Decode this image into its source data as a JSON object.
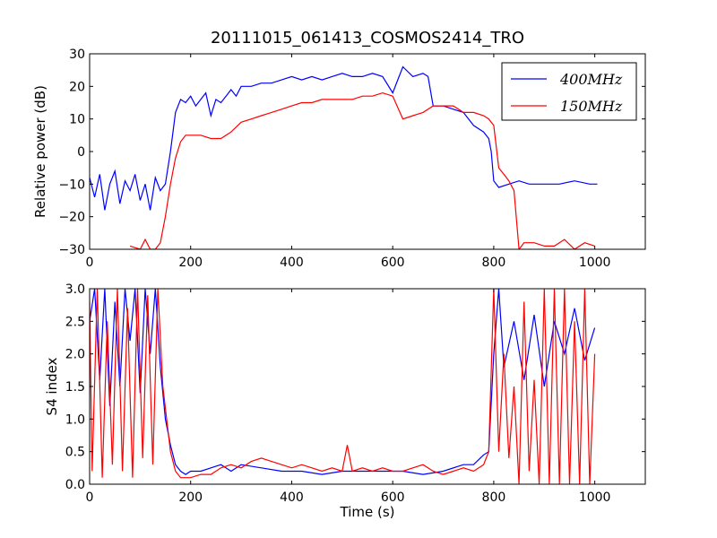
{
  "title": "20111015_061413_COSMOS2414_TRO",
  "colors": {
    "series_400": "#0000ff",
    "series_150": "#ff0000",
    "axes": "#000000",
    "background": "#ffffff"
  },
  "chart_data": [
    {
      "type": "line",
      "ylabel": "Relative power (dB)",
      "xlabel": "",
      "xlim": [
        0,
        1100
      ],
      "ylim": [
        -30,
        30
      ],
      "xticks": [
        0,
        200,
        400,
        600,
        800,
        1000
      ],
      "yticks": [
        -30,
        -20,
        -10,
        0,
        10,
        20,
        30
      ],
      "xtick_labels": [
        "0",
        "200",
        "400",
        "600",
        "800",
        "1000"
      ],
      "ytick_labels": [
        "−30",
        "−20",
        "−10",
        "0",
        "10",
        "20",
        "30"
      ],
      "legend_placement": "top-right",
      "grid": false,
      "series": [
        {
          "name": "400MHz",
          "color": "#0000ff",
          "x": [
            0,
            10,
            20,
            30,
            40,
            50,
            60,
            70,
            80,
            90,
            100,
            110,
            120,
            130,
            140,
            150,
            160,
            170,
            180,
            190,
            200,
            210,
            220,
            230,
            240,
            250,
            260,
            270,
            280,
            290,
            300,
            320,
            340,
            360,
            380,
            400,
            420,
            440,
            460,
            480,
            500,
            520,
            540,
            560,
            580,
            600,
            610,
            620,
            640,
            660,
            670,
            680,
            700,
            720,
            740,
            760,
            780,
            790,
            795,
            800,
            810,
            830,
            850,
            870,
            900,
            930,
            960,
            990,
            1005
          ],
          "y": [
            -8,
            -14,
            -7,
            -18,
            -10,
            -6,
            -16,
            -9,
            -12,
            -7,
            -15,
            -10,
            -18,
            -8,
            -12,
            -10,
            0,
            12,
            16,
            15,
            17,
            14,
            16,
            18,
            11,
            16,
            15,
            17,
            19,
            17,
            20,
            20,
            21,
            21,
            22,
            23,
            22,
            23,
            22,
            23,
            24,
            23,
            23,
            24,
            23,
            18,
            22,
            26,
            23,
            24,
            23,
            14,
            14,
            13,
            12,
            8,
            6,
            4,
            0,
            -9,
            -11,
            -10,
            -9,
            -10,
            -10,
            -10,
            -9,
            -10,
            -10
          ]
        },
        {
          "name": "150MHz",
          "color": "#ff0000",
          "x": [
            80,
            100,
            110,
            120,
            130,
            140,
            150,
            160,
            170,
            180,
            190,
            200,
            220,
            240,
            260,
            280,
            300,
            320,
            340,
            360,
            380,
            400,
            420,
            440,
            460,
            480,
            500,
            520,
            540,
            560,
            580,
            600,
            620,
            640,
            660,
            680,
            700,
            720,
            740,
            760,
            780,
            790,
            800,
            810,
            820,
            830,
            840,
            850,
            860,
            880,
            900,
            920,
            940,
            960,
            980,
            1000
          ],
          "y": [
            -29,
            -30,
            -27,
            -30,
            -30,
            -28,
            -20,
            -10,
            -2,
            3,
            5,
            5,
            5,
            4,
            4,
            6,
            9,
            10,
            11,
            12,
            13,
            14,
            15,
            15,
            16,
            16,
            16,
            16,
            17,
            17,
            18,
            17,
            10,
            11,
            12,
            14,
            14,
            14,
            12,
            12,
            11,
            10,
            8,
            -5,
            -7,
            -9,
            -12,
            -30,
            -28,
            -28,
            -29,
            -29,
            -27,
            -30,
            -28,
            -29
          ]
        }
      ]
    },
    {
      "type": "line",
      "ylabel": "S4 index",
      "xlabel": "Time (s)",
      "xlim": [
        0,
        1100
      ],
      "ylim": [
        0,
        3
      ],
      "xticks": [
        0,
        200,
        400,
        600,
        800,
        1000
      ],
      "yticks": [
        0,
        0.5,
        1,
        1.5,
        2,
        2.5,
        3
      ],
      "xtick_labels": [
        "0",
        "200",
        "400",
        "600",
        "800",
        "1000"
      ],
      "ytick_labels": [
        "0.0",
        "0.5",
        "1.0",
        "1.5",
        "2.0",
        "2.5",
        "3.0"
      ],
      "grid": false,
      "series": [
        {
          "name": "400MHz",
          "color": "#0000ff",
          "x": [
            0,
            10,
            20,
            30,
            40,
            50,
            60,
            70,
            80,
            90,
            100,
            110,
            120,
            130,
            140,
            150,
            160,
            170,
            180,
            190,
            200,
            220,
            240,
            260,
            280,
            300,
            340,
            380,
            420,
            460,
            500,
            540,
            580,
            620,
            660,
            700,
            740,
            760,
            780,
            790,
            800,
            810,
            820,
            840,
            860,
            880,
            900,
            920,
            940,
            960,
            980,
            1000
          ],
          "y": [
            2.5,
            3.0,
            1.6,
            3.0,
            1.2,
            2.8,
            1.5,
            3.0,
            2.2,
            3.0,
            1.4,
            3.0,
            2.0,
            3.0,
            1.8,
            1.0,
            0.6,
            0.3,
            0.2,
            0.15,
            0.2,
            0.2,
            0.25,
            0.3,
            0.2,
            0.3,
            0.25,
            0.2,
            0.2,
            0.15,
            0.2,
            0.2,
            0.2,
            0.2,
            0.15,
            0.2,
            0.3,
            0.3,
            0.45,
            0.5,
            2.0,
            3.0,
            1.8,
            2.5,
            1.6,
            2.6,
            1.5,
            2.5,
            2.0,
            2.7,
            1.9,
            2.4
          ]
        },
        {
          "name": "150MHz",
          "color": "#ff0000",
          "x": [
            0,
            5,
            15,
            25,
            35,
            45,
            55,
            65,
            75,
            85,
            95,
            105,
            115,
            125,
            135,
            145,
            160,
            170,
            180,
            190,
            200,
            220,
            240,
            260,
            280,
            300,
            320,
            340,
            360,
            380,
            400,
            420,
            440,
            460,
            480,
            500,
            510,
            520,
            540,
            560,
            580,
            600,
            620,
            640,
            660,
            680,
            700,
            720,
            740,
            760,
            780,
            790,
            800,
            810,
            820,
            830,
            840,
            850,
            860,
            870,
            880,
            890,
            900,
            910,
            920,
            930,
            940,
            950,
            960,
            970,
            980,
            990,
            1000
          ],
          "y": [
            2.8,
            0.2,
            3.0,
            0.1,
            2.5,
            0.3,
            3.0,
            0.2,
            2.7,
            0.1,
            3.0,
            0.4,
            2.9,
            0.3,
            3.0,
            1.5,
            0.5,
            0.2,
            0.1,
            0.1,
            0.1,
            0.15,
            0.15,
            0.25,
            0.3,
            0.25,
            0.35,
            0.4,
            0.35,
            0.3,
            0.25,
            0.3,
            0.25,
            0.2,
            0.25,
            0.2,
            0.6,
            0.2,
            0.25,
            0.2,
            0.25,
            0.2,
            0.2,
            0.25,
            0.3,
            0.2,
            0.15,
            0.2,
            0.25,
            0.2,
            0.3,
            0.5,
            3.0,
            0.5,
            2.0,
            0.4,
            1.5,
            0.0,
            2.8,
            0.2,
            1.6,
            0.0,
            3.0,
            0.0,
            3.0,
            0.0,
            3.0,
            0.0,
            2.5,
            0.0,
            3.0,
            0.0,
            2.0
          ]
        }
      ]
    }
  ]
}
